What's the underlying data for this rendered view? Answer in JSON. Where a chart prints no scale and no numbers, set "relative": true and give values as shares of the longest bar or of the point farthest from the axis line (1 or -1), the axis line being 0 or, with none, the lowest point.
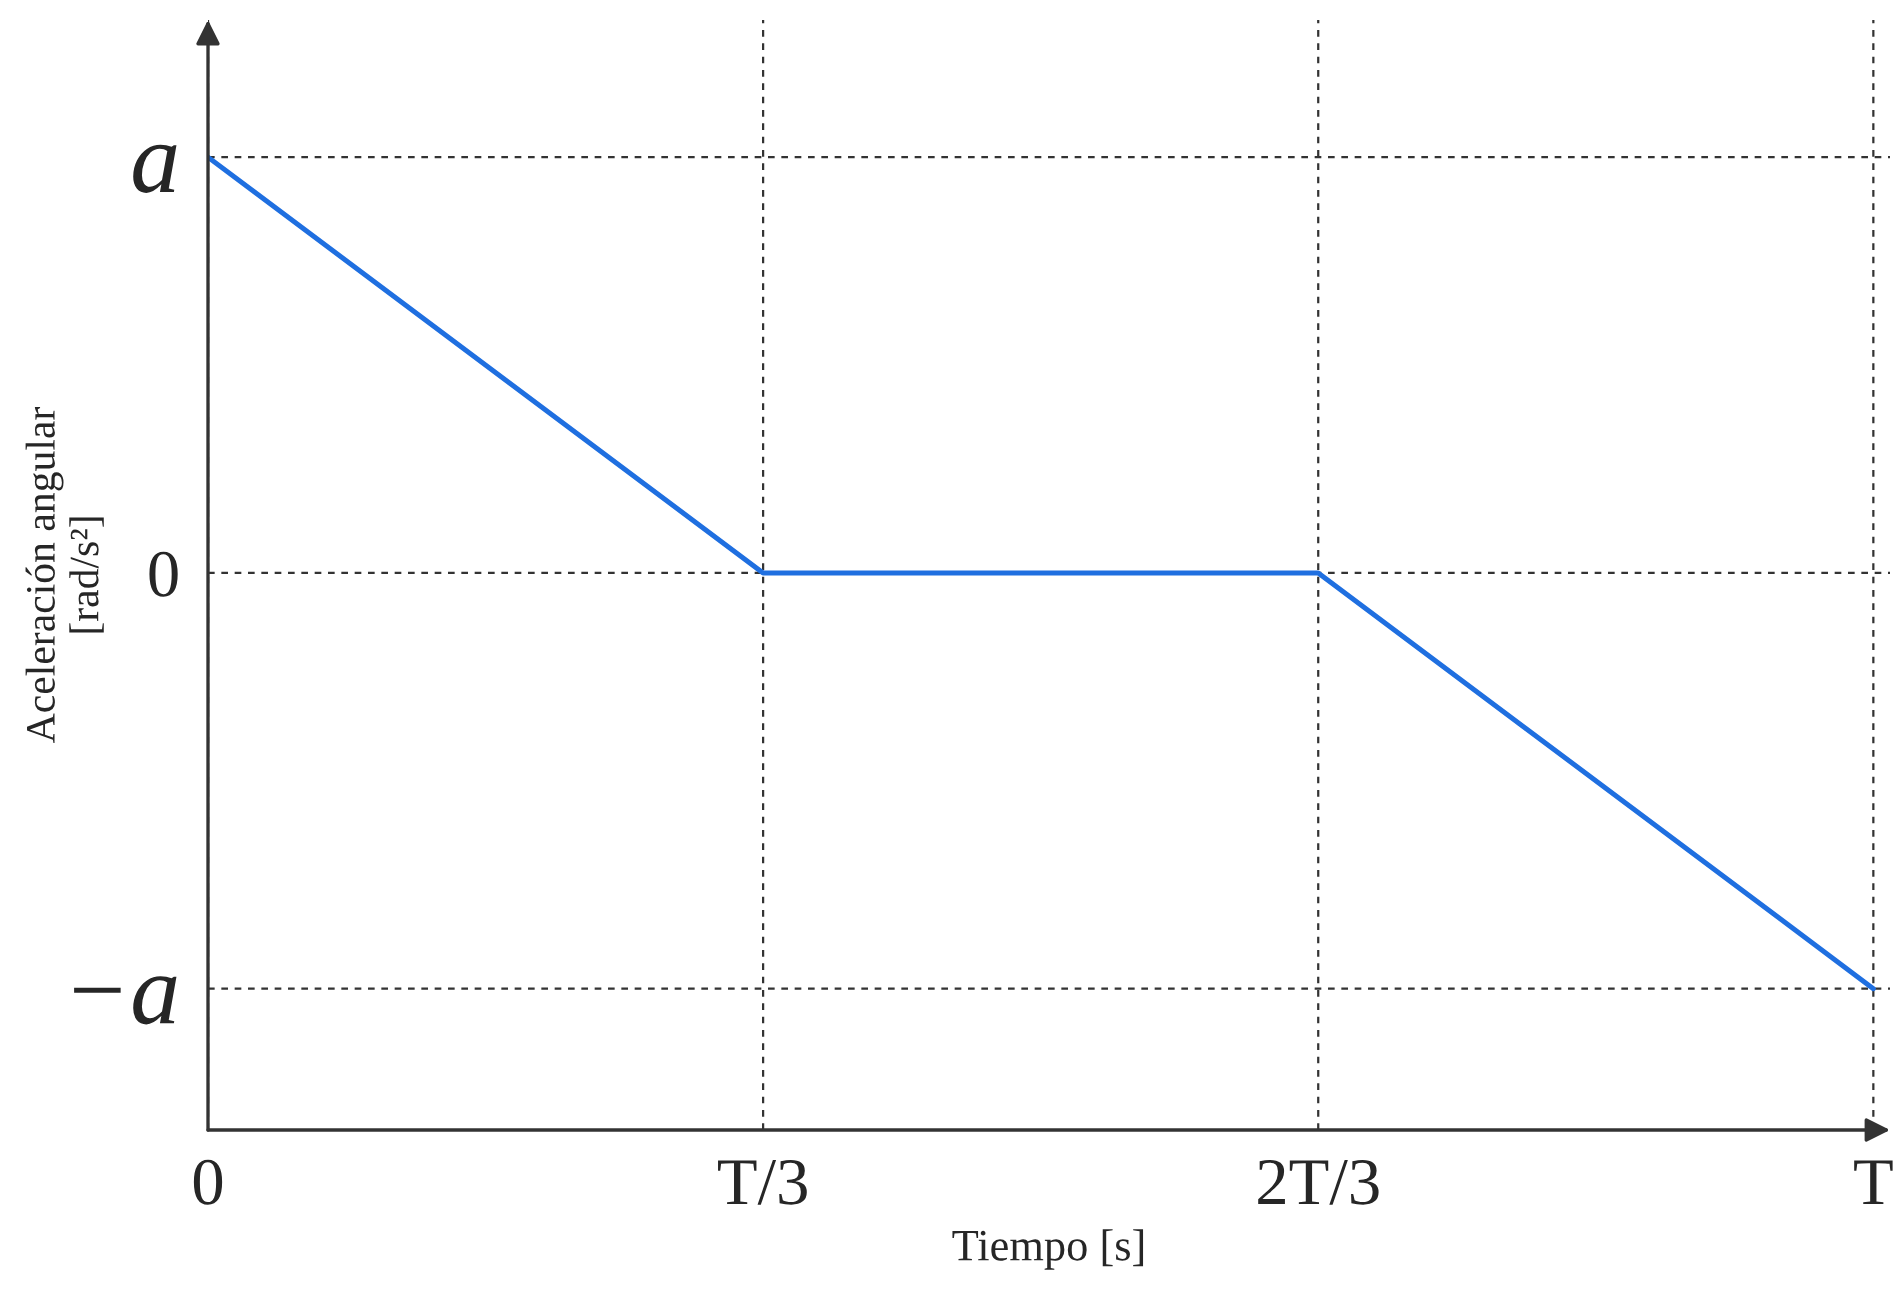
{
  "chart_data": {
    "type": "line",
    "xlabel": "Tiempo [s]",
    "ylabel": "Aceleración angular\n[rad/s²]",
    "categories": [
      "0",
      "T/3",
      "2T/3",
      "T"
    ],
    "series": [
      {
        "color": "#1f6fe0",
        "values": [
          1,
          0,
          0,
          -1
        ]
      }
    ],
    "relative": true,
    "annotations": [
      "a",
      "0",
      "−a"
    ],
    "grid": true,
    "marker": "none",
    "line_style": "solid",
    "legend": false
  }
}
